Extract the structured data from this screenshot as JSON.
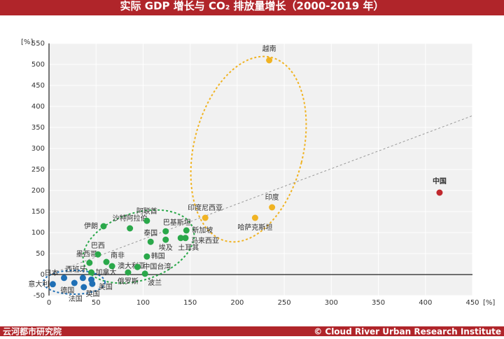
{
  "chart_data": {
    "type": "scatter",
    "title": "实际 GDP 增长与 CO₂ 排放量增长（2000-2019 年）",
    "x_unit": "[%]",
    "y_unit": "[%]",
    "xlim": [
      0,
      450
    ],
    "xticks": [
      0,
      50,
      100,
      150,
      200,
      250,
      300,
      350,
      400,
      450
    ],
    "ylim": [
      -50,
      550
    ],
    "yticks": [
      -50,
      0,
      50,
      100,
      150,
      200,
      250,
      300,
      350,
      400,
      450,
      500,
      550
    ],
    "grid": true,
    "reference_line": {
      "x": [
        0,
        450
      ],
      "y": [
        0,
        378
      ]
    },
    "points": {
      "labels": [
        "越南",
        "印度",
        "印度尼西亚",
        "哈萨克斯坦",
        "中国",
        "伊朗",
        "沙特阿拉伯",
        "阿联酋",
        "巴基斯坦",
        "泰国",
        "新加坡",
        "埃及",
        "马来西亚",
        "土耳其",
        "墨西哥",
        "巴西",
        "南非",
        "澳大利亚",
        "加拿大",
        "韩国",
        "中国台湾",
        "俄罗斯",
        "波兰",
        "日本",
        "西班牙",
        "意大利",
        "德国",
        "法国",
        "英国",
        "美国"
      ],
      "x": [
        234,
        237,
        166,
        219,
        415,
        58,
        86,
        104,
        124,
        108,
        146,
        124,
        145,
        140,
        43,
        52,
        61,
        67,
        45,
        104,
        94,
        84,
        102,
        16,
        36,
        4,
        27,
        37,
        45,
        46
      ],
      "y": [
        510,
        160,
        135,
        135,
        195,
        115,
        110,
        128,
        103,
        78,
        105,
        83,
        87,
        87,
        28,
        48,
        30,
        20,
        5,
        43,
        18,
        5,
        2,
        -8,
        -8,
        -23,
        -20,
        -30,
        -12,
        -22
      ],
      "colors": [
        "#f0b323",
        "#f0b323",
        "#f0b323",
        "#f0b323",
        "#c0282d",
        "#2aa84a",
        "#2aa84a",
        "#2aa84a",
        "#2aa84a",
        "#2aa84a",
        "#2aa84a",
        "#2aa84a",
        "#2aa84a",
        "#2aa84a",
        "#2aa84a",
        "#2aa84a",
        "#2aa84a",
        "#2aa84a",
        "#2aa84a",
        "#2aa84a",
        "#2aa84a",
        "#2aa84a",
        "#2aa84a",
        "#1f6fb5",
        "#1f6fb5",
        "#1f6fb5",
        "#1f6fb5",
        "#1f6fb5",
        "#1f6fb5",
        "#1f6fb5"
      ]
    },
    "footer_left": "云河都市研究院",
    "footer_right": "© Cloud River Urban Research Institute"
  }
}
